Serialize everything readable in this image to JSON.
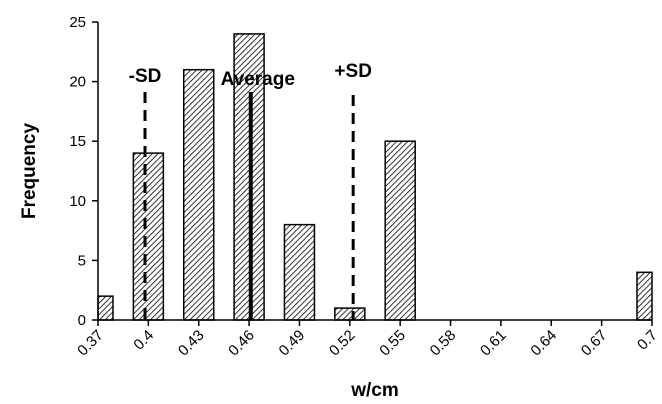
{
  "chart_data": {
    "type": "bar",
    "title": "",
    "xlabel": "w/cm",
    "ylabel": "Frequency",
    "ylim": [
      0,
      25
    ],
    "yticks": [
      "0",
      "5",
      "10",
      "15",
      "20",
      "25"
    ],
    "x_ticks": [
      "0.37",
      "0.4",
      "0.43",
      "0.46",
      "0.49",
      "0.52",
      "0.55",
      "0.58",
      "0.61",
      "0.64",
      "0.67",
      "0.7"
    ],
    "categories": [
      "0.37",
      "0.4",
      "0.43",
      "0.46",
      "0.49",
      "0.52",
      "0.55",
      "0.58",
      "0.61",
      "0.64",
      "0.67",
      "0.7"
    ],
    "values": [
      2,
      14,
      21,
      24,
      8,
      1,
      15,
      0,
      0,
      0,
      0,
      4
    ],
    "bar_fill": "diagonal hatch",
    "reference_lines": [
      {
        "label": "-SD",
        "x": 0.398,
        "style": "dashed"
      },
      {
        "label": "Average",
        "x": 0.461,
        "style": "solid"
      },
      {
        "label": "+SD",
        "x": 0.522,
        "style": "dashed"
      }
    ],
    "grid": false,
    "legend": "none"
  },
  "colors": {
    "axis": "#000000",
    "bar_stroke": "#000000",
    "hatch": "#000000",
    "background": "#ffffff"
  }
}
